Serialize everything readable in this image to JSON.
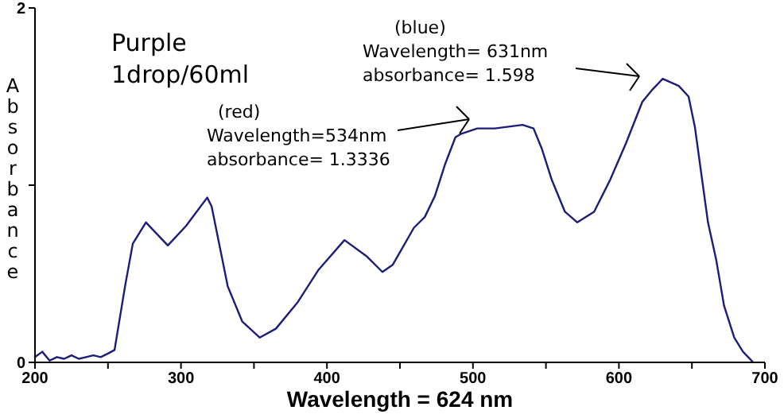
{
  "chart_data": {
    "type": "line",
    "xlabel": "Wavelength = 624 nm",
    "ylabel": "Absorbance",
    "xlim": [
      200,
      700
    ],
    "ylim": [
      0,
      2
    ],
    "xticks": [
      200,
      {
        "value": 250,
        "label": null
      },
      300,
      {
        "value": 350,
        "label": null
      },
      400,
      {
        "value": 450,
        "label": null
      },
      500,
      {
        "value": 550,
        "label": null
      },
      600,
      {
        "value": 650,
        "label": null
      },
      700
    ],
    "yticks": [
      0,
      {
        "value": 1,
        "label": null
      },
      2
    ],
    "grid": false,
    "marker": "none",
    "line_style": "solid",
    "annotations": [
      "Purple",
      "1drop/60ml",
      "(red)\nWavelength=534nm\nabsorbance= 1.3336",
      "(blue)\nWavelength=  631nm\nabsorbance=  1.598"
    ],
    "series": [
      {
        "color": "#1c1c7a",
        "x": [
          200,
          205,
          210,
          215,
          220,
          225,
          230,
          235,
          240,
          245,
          250,
          254.5,
          261.7,
          267,
          276,
          291,
          303.5,
          318,
          321,
          332,
          342,
          354,
          365,
          380,
          394,
          412,
          427,
          438,
          445,
          459.6,
          467,
          474,
          481,
          488,
          492,
          503,
          515,
          534,
          541.5,
          547,
          554,
          563,
          571.5,
          583,
          594,
          605,
          616,
          623,
          630,
          641,
          647.7,
          652,
          657.5,
          661,
          666.6,
          672,
          679,
          685,
          692
        ],
        "values": [
          0.03,
          0.06,
          0.01,
          0.03,
          0.02,
          0.04,
          0.02,
          0.03,
          0.04,
          0.03,
          0.05,
          0.07,
          0.43,
          0.67,
          0.79,
          0.66,
          0.77,
          0.93,
          0.88,
          0.43,
          0.23,
          0.14,
          0.19,
          0.34,
          0.52,
          0.69,
          0.6,
          0.51,
          0.55,
          0.76,
          0.82,
          0.94,
          1.12,
          1.27,
          1.29,
          1.32,
          1.32,
          1.34,
          1.32,
          1.21,
          1.03,
          0.85,
          0.79,
          0.85,
          1.03,
          1.24,
          1.47,
          1.54,
          1.6,
          1.56,
          1.5,
          1.33,
          1.0,
          0.79,
          0.58,
          0.32,
          0.14,
          0.06,
          0.0
        ]
      }
    ]
  }
}
